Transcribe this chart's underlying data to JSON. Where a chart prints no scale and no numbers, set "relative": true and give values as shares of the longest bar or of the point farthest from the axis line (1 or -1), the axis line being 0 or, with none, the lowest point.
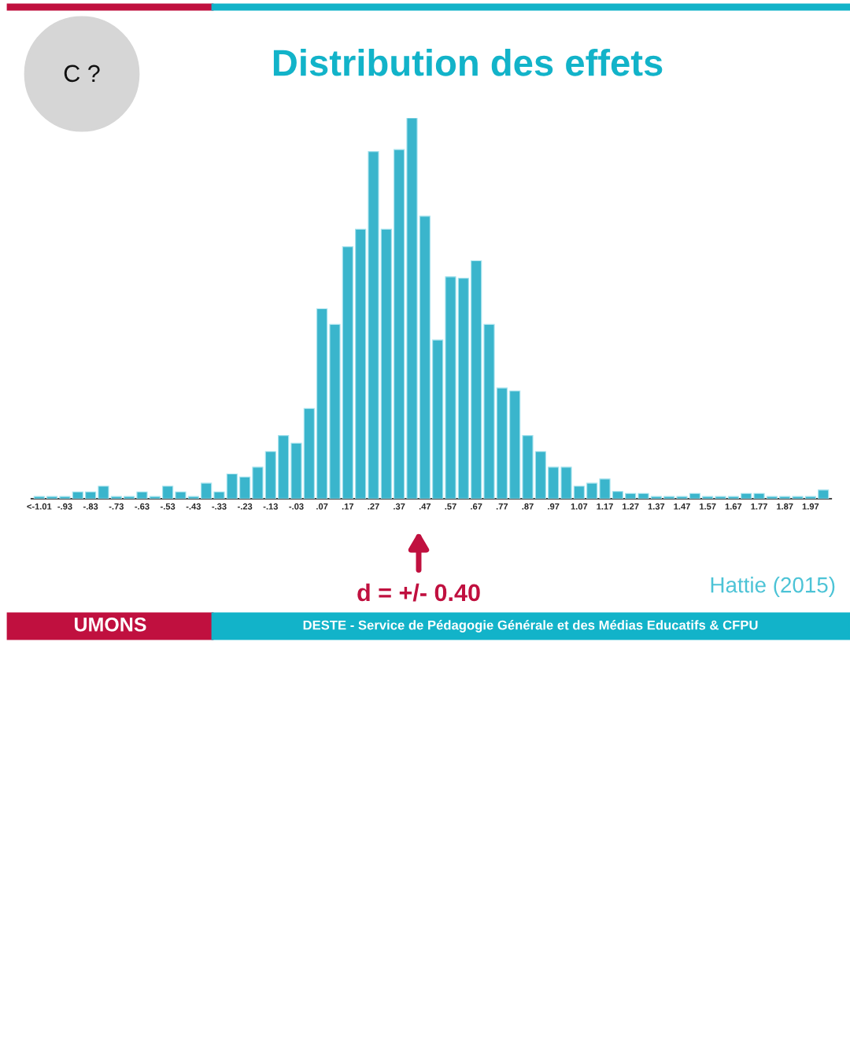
{
  "chart_data": {
    "type": "bar",
    "title": "Distribution des effets",
    "relative": true,
    "color": "#3ab5cc",
    "grid": false,
    "categories": [
      "<-1.01",
      null,
      "-.93",
      null,
      "-.83",
      null,
      "-.73",
      null,
      "-.63",
      null,
      "-.53",
      null,
      "-.43",
      null,
      "-.33",
      null,
      "-.23",
      null,
      "-.13",
      null,
      "-.03",
      null,
      ".07",
      null,
      ".17",
      null,
      ".27",
      null,
      ".37",
      null,
      ".47",
      null,
      ".57",
      null,
      ".67",
      null,
      ".77",
      null,
      ".87",
      null,
      ".97",
      null,
      "1.07",
      null,
      "1.17",
      null,
      "1.27",
      null,
      "1.37",
      null,
      "1.47",
      null,
      "1.57",
      null,
      "1.67",
      null,
      "1.77",
      null,
      "1.87",
      null,
      "1.97",
      null
    ],
    "values": [
      0.006,
      0.006,
      0.006,
      0.018,
      0.018,
      0.033,
      0.006,
      0.006,
      0.018,
      0.006,
      0.033,
      0.018,
      0.006,
      0.041,
      0.018,
      0.065,
      0.057,
      0.083,
      0.124,
      0.166,
      0.146,
      0.237,
      0.499,
      0.458,
      0.662,
      0.708,
      0.912,
      0.708,
      0.917,
      1,
      0.742,
      0.417,
      0.583,
      0.579,
      0.625,
      0.458,
      0.291,
      0.283,
      0.166,
      0.124,
      0.083,
      0.083,
      0.033,
      0.041,
      0.052,
      0.019,
      0.014,
      0.014,
      0.006,
      0.006,
      0.006,
      0.014,
      0.006,
      0.006,
      0.006,
      0.014,
      0.014,
      0.006,
      0.006,
      0.006,
      0.006,
      0.023
    ],
    "annotations": [
      "C ?",
      "d = +/- 0.40",
      "Hattie (2015)",
      "UMONS",
      "DESTE - Service de Pédagogie Générale et des Médias Educatifs & CFPU"
    ]
  }
}
